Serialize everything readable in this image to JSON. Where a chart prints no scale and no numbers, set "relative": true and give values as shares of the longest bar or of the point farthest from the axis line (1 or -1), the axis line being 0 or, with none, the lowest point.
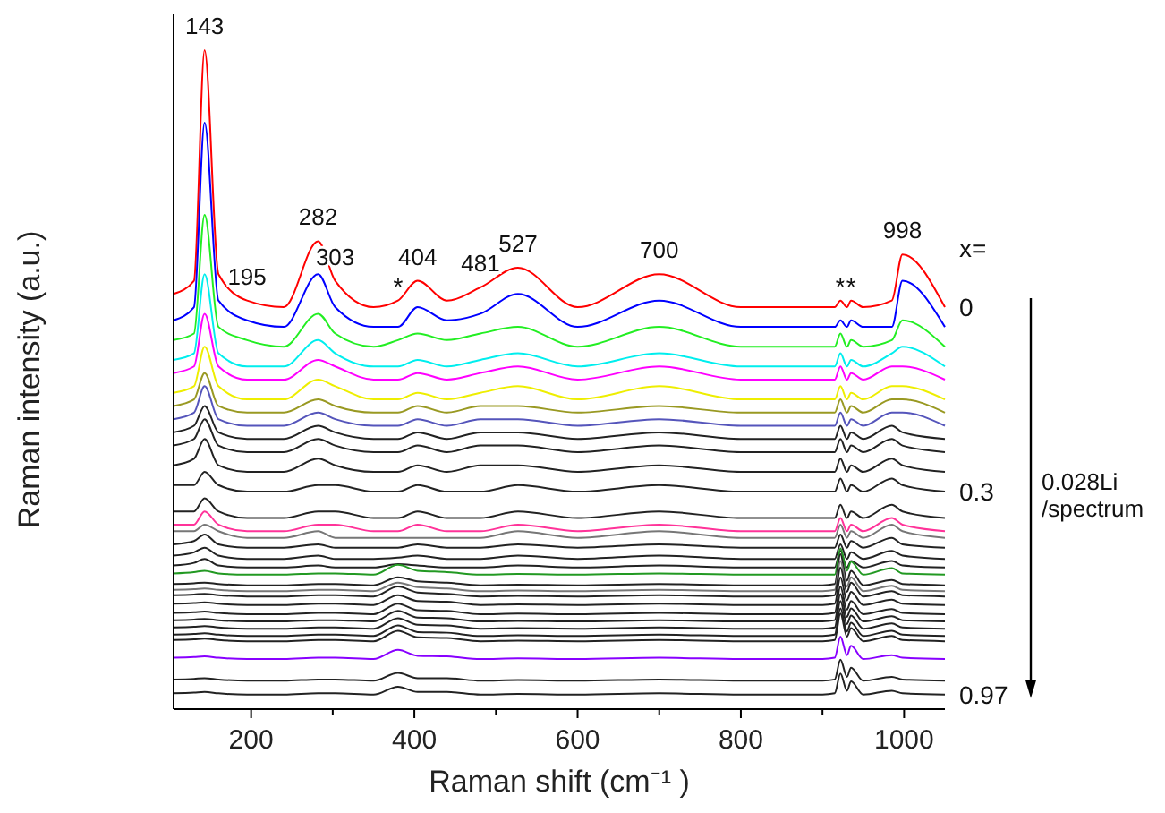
{
  "chart_data": {
    "type": "line",
    "relative": true,
    "xlabel": "Raman shift (cm⁻¹ )",
    "ylabel": "Raman intensity (a.u.)",
    "legend": false,
    "marker": "none",
    "line_style": "solid",
    "grid": false,
    "xlim": [
      105,
      1050
    ],
    "xticks": [
      200,
      {
        "value": 300,
        "label": null
      },
      400,
      {
        "value": 500,
        "label": null
      },
      600,
      {
        "value": 700,
        "label": null
      },
      800,
      {
        "value": 900,
        "label": null
      },
      1000
    ],
    "x": [
      105,
      130,
      143,
      160,
      195,
      240,
      282,
      303,
      350,
      380,
      404,
      440,
      481,
      527,
      600,
      700,
      800,
      900,
      915,
      922,
      930,
      935,
      950,
      985,
      998,
      1050
    ],
    "annotations": [
      {
        "text": "143",
        "x": 143,
        "y": 1
      },
      {
        "text": "195",
        "x": 195,
        "y": 0.62
      },
      {
        "text": "282",
        "x": 282,
        "y": 0.71
      },
      {
        "text": "303",
        "x": 303,
        "y": 0.65
      },
      {
        "text": "*",
        "x": 380,
        "y": 0.62
      },
      {
        "text": "404",
        "x": 404,
        "y": 0.65
      },
      {
        "text": "481",
        "x": 481,
        "y": 0.64
      },
      {
        "text": "527",
        "x": 527,
        "y": 0.67
      },
      {
        "text": "700",
        "x": 700,
        "y": 0.66
      },
      {
        "text": "*",
        "x": 922,
        "y": 0.62
      },
      {
        "text": "*",
        "x": 935,
        "y": 0.62
      },
      {
        "text": "998",
        "x": 998,
        "y": 0.69
      },
      "x=",
      "0.028Li /spectrum"
    ],
    "series": [
      {
        "name": "0",
        "color": "#ff0000",
        "values": [
          0.63,
          0.65,
          1,
          0.66,
          0.62,
          0.61,
          0.71,
          0.65,
          0.61,
          0.62,
          0.65,
          0.62,
          0.64,
          0.67,
          0.61,
          0.66,
          0.61,
          0.61,
          0.61,
          0.62,
          0.61,
          0.62,
          0.61,
          0.62,
          0.69,
          0.61
        ]
      },
      {
        "color": "#0000ff",
        "values": [
          0.59,
          0.61,
          0.89,
          0.62,
          0.59,
          0.58,
          0.66,
          0.61,
          0.58,
          0.58,
          0.61,
          0.59,
          0.6,
          0.63,
          0.58,
          0.62,
          0.58,
          0.58,
          0.58,
          0.59,
          0.58,
          0.59,
          0.58,
          0.58,
          0.65,
          0.58
        ]
      },
      {
        "color": "#22ee22",
        "values": [
          0.56,
          0.57,
          0.75,
          0.58,
          0.56,
          0.55,
          0.6,
          0.57,
          0.55,
          0.56,
          0.57,
          0.56,
          0.57,
          0.58,
          0.55,
          0.58,
          0.55,
          0.55,
          0.55,
          0.57,
          0.55,
          0.56,
          0.55,
          0.56,
          0.59,
          0.55
        ]
      },
      {
        "color": "#00eeee",
        "values": [
          0.53,
          0.54,
          0.66,
          0.54,
          0.52,
          0.52,
          0.56,
          0.54,
          0.52,
          0.52,
          0.53,
          0.52,
          0.53,
          0.54,
          0.52,
          0.54,
          0.52,
          0.52,
          0.52,
          0.54,
          0.52,
          0.53,
          0.52,
          0.54,
          0.55,
          0.52
        ]
      },
      {
        "color": "#ff00ff",
        "values": [
          0.51,
          0.52,
          0.6,
          0.52,
          0.5,
          0.5,
          0.53,
          0.52,
          0.5,
          0.5,
          0.51,
          0.5,
          0.51,
          0.52,
          0.5,
          0.52,
          0.5,
          0.5,
          0.5,
          0.52,
          0.5,
          0.51,
          0.5,
          0.52,
          0.52,
          0.5
        ]
      },
      {
        "color": "#eeee00",
        "values": [
          0.48,
          0.49,
          0.55,
          0.49,
          0.47,
          0.47,
          0.5,
          0.49,
          0.47,
          0.47,
          0.48,
          0.47,
          0.48,
          0.49,
          0.47,
          0.49,
          0.47,
          0.47,
          0.47,
          0.49,
          0.47,
          0.48,
          0.47,
          0.49,
          0.49,
          0.47
        ]
      },
      {
        "color": "#999922",
        "values": [
          0.46,
          0.47,
          0.51,
          0.46,
          0.45,
          0.45,
          0.47,
          0.46,
          0.45,
          0.45,
          0.46,
          0.45,
          0.46,
          0.46,
          0.45,
          0.46,
          0.45,
          0.45,
          0.45,
          0.47,
          0.45,
          0.46,
          0.45,
          0.47,
          0.47,
          0.45
        ]
      },
      {
        "color": "#5555bb",
        "values": [
          0.44,
          0.45,
          0.49,
          0.44,
          0.43,
          0.43,
          0.45,
          0.44,
          0.43,
          0.43,
          0.44,
          0.43,
          0.44,
          0.44,
          0.43,
          0.44,
          0.43,
          0.43,
          0.43,
          0.45,
          0.43,
          0.44,
          0.43,
          0.45,
          0.45,
          0.43
        ]
      },
      {
        "color": "#222222",
        "values": [
          0.42,
          0.43,
          0.46,
          0.42,
          0.41,
          0.41,
          0.43,
          0.42,
          0.41,
          0.41,
          0.42,
          0.41,
          0.42,
          0.42,
          0.41,
          0.42,
          0.41,
          0.41,
          0.41,
          0.43,
          0.41,
          0.42,
          0.41,
          0.43,
          0.42,
          0.41
        ]
      },
      {
        "color": "#222222",
        "values": [
          0.4,
          0.41,
          0.44,
          0.4,
          0.39,
          0.39,
          0.41,
          0.4,
          0.39,
          0.39,
          0.4,
          0.39,
          0.4,
          0.4,
          0.39,
          0.4,
          0.39,
          0.39,
          0.39,
          0.41,
          0.39,
          0.4,
          0.39,
          0.41,
          0.4,
          0.39
        ]
      },
      {
        "color": "#222222",
        "values": [
          0.37,
          0.38,
          0.41,
          0.37,
          0.36,
          0.36,
          0.38,
          0.37,
          0.36,
          0.36,
          0.37,
          0.36,
          0.37,
          0.37,
          0.36,
          0.37,
          0.36,
          0.36,
          0.36,
          0.38,
          0.36,
          0.37,
          0.36,
          0.38,
          0.37,
          0.36
        ]
      },
      {
        "name": "0.3",
        "color": "#222222",
        "values": [
          0.34,
          0.34,
          0.36,
          0.34,
          0.33,
          0.33,
          0.34,
          0.34,
          0.33,
          0.33,
          0.34,
          0.33,
          0.33,
          0.34,
          0.33,
          0.34,
          0.33,
          0.33,
          0.33,
          0.35,
          0.33,
          0.34,
          0.33,
          0.35,
          0.34,
          0.33
        ]
      },
      {
        "color": "#222222",
        "values": [
          0.3,
          0.3,
          0.32,
          0.3,
          0.29,
          0.29,
          0.3,
          0.3,
          0.29,
          0.29,
          0.3,
          0.29,
          0.29,
          0.3,
          0.29,
          0.3,
          0.29,
          0.29,
          0.29,
          0.31,
          0.29,
          0.3,
          0.29,
          0.31,
          0.3,
          0.29
        ]
      },
      {
        "color": "#ff3399",
        "values": [
          0.28,
          0.28,
          0.3,
          0.28,
          0.27,
          0.27,
          0.28,
          0.28,
          0.27,
          0.27,
          0.28,
          0.27,
          0.27,
          0.28,
          0.27,
          0.28,
          0.27,
          0.27,
          0.27,
          0.29,
          0.27,
          0.28,
          0.27,
          0.29,
          0.28,
          0.27
        ]
      },
      {
        "color": "#777777",
        "values": [
          0.27,
          0.27,
          0.28,
          0.27,
          0.26,
          0.26,
          0.27,
          0.26,
          0.26,
          0.26,
          0.26,
          0.26,
          0.26,
          0.27,
          0.26,
          0.27,
          0.26,
          0.26,
          0.26,
          0.28,
          0.26,
          0.27,
          0.26,
          0.28,
          0.27,
          0.26
        ]
      },
      {
        "color": "#222222",
        "values": [
          0.25,
          0.255,
          0.265,
          0.25,
          0.245,
          0.245,
          0.25,
          0.245,
          0.245,
          0.245,
          0.25,
          0.245,
          0.245,
          0.25,
          0.245,
          0.25,
          0.245,
          0.245,
          0.245,
          0.265,
          0.245,
          0.255,
          0.245,
          0.26,
          0.25,
          0.245
        ]
      },
      {
        "color": "#222222",
        "values": [
          0.233,
          0.238,
          0.245,
          0.233,
          0.228,
          0.228,
          0.233,
          0.228,
          0.228,
          0.23,
          0.233,
          0.228,
          0.228,
          0.233,
          0.228,
          0.233,
          0.228,
          0.228,
          0.228,
          0.25,
          0.228,
          0.238,
          0.228,
          0.24,
          0.233,
          0.228
        ]
      },
      {
        "color": "#222222",
        "values": [
          0.218,
          0.222,
          0.228,
          0.218,
          0.215,
          0.215,
          0.218,
          0.215,
          0.215,
          0.22,
          0.218,
          0.215,
          0.215,
          0.218,
          0.215,
          0.218,
          0.215,
          0.215,
          0.215,
          0.24,
          0.215,
          0.225,
          0.215,
          0.225,
          0.218,
          0.215
        ]
      },
      {
        "color": "#229922",
        "values": [
          0.206,
          0.208,
          0.21,
          0.206,
          0.204,
          0.204,
          0.206,
          0.206,
          0.204,
          0.219,
          0.21,
          0.208,
          0.204,
          0.205,
          0.204,
          0.206,
          0.204,
          0.204,
          0.204,
          0.244,
          0.21,
          0.224,
          0.204,
          0.214,
          0.206,
          0.204
        ]
      },
      {
        "color": "#222222",
        "values": [
          0.19,
          0.191,
          0.192,
          0.19,
          0.188,
          0.188,
          0.19,
          0.19,
          0.188,
          0.2,
          0.194,
          0.192,
          0.188,
          0.189,
          0.188,
          0.19,
          0.188,
          0.188,
          0.19,
          0.235,
          0.195,
          0.21,
          0.188,
          0.196,
          0.19,
          0.188
        ]
      },
      {
        "color": "#777777",
        "values": [
          0.181,
          0.182,
          0.183,
          0.181,
          0.179,
          0.179,
          0.181,
          0.181,
          0.179,
          0.192,
          0.185,
          0.183,
          0.179,
          0.18,
          0.179,
          0.181,
          0.179,
          0.179,
          0.181,
          0.225,
          0.186,
          0.2,
          0.179,
          0.187,
          0.181,
          0.179
        ]
      },
      {
        "color": "#222222",
        "values": [
          0.173,
          0.174,
          0.175,
          0.173,
          0.171,
          0.171,
          0.173,
          0.173,
          0.171,
          0.186,
          0.177,
          0.175,
          0.171,
          0.172,
          0.171,
          0.173,
          0.171,
          0.171,
          0.173,
          0.215,
          0.178,
          0.192,
          0.171,
          0.179,
          0.173,
          0.171
        ]
      },
      {
        "color": "#222222",
        "values": [
          0.16,
          0.161,
          0.162,
          0.16,
          0.158,
          0.158,
          0.16,
          0.16,
          0.158,
          0.173,
          0.164,
          0.163,
          0.158,
          0.159,
          0.158,
          0.16,
          0.158,
          0.158,
          0.16,
          0.2,
          0.165,
          0.178,
          0.158,
          0.166,
          0.16,
          0.158
        ]
      },
      {
        "color": "#222222",
        "values": [
          0.146,
          0.147,
          0.148,
          0.146,
          0.144,
          0.144,
          0.146,
          0.146,
          0.144,
          0.16,
          0.15,
          0.149,
          0.144,
          0.145,
          0.144,
          0.146,
          0.144,
          0.144,
          0.146,
          0.186,
          0.151,
          0.164,
          0.144,
          0.152,
          0.146,
          0.144
        ]
      },
      {
        "color": "#222222",
        "values": [
          0.135,
          0.136,
          0.137,
          0.135,
          0.133,
          0.133,
          0.135,
          0.135,
          0.133,
          0.149,
          0.139,
          0.138,
          0.133,
          0.134,
          0.133,
          0.135,
          0.133,
          0.133,
          0.135,
          0.175,
          0.14,
          0.153,
          0.133,
          0.141,
          0.135,
          0.133
        ]
      },
      {
        "color": "#222222",
        "values": [
          0.124,
          0.125,
          0.126,
          0.124,
          0.122,
          0.122,
          0.124,
          0.124,
          0.122,
          0.138,
          0.128,
          0.127,
          0.122,
          0.123,
          0.122,
          0.124,
          0.122,
          0.122,
          0.124,
          0.164,
          0.129,
          0.142,
          0.122,
          0.13,
          0.124,
          0.122
        ]
      },
      {
        "color": "#222222",
        "values": [
          0.113,
          0.114,
          0.115,
          0.113,
          0.111,
          0.111,
          0.113,
          0.113,
          0.111,
          0.127,
          0.117,
          0.116,
          0.111,
          0.112,
          0.111,
          0.113,
          0.111,
          0.111,
          0.113,
          0.153,
          0.118,
          0.131,
          0.111,
          0.119,
          0.113,
          0.111
        ]
      },
      {
        "color": "#222222",
        "values": [
          0.105,
          0.106,
          0.107,
          0.105,
          0.103,
          0.103,
          0.105,
          0.105,
          0.103,
          0.119,
          0.109,
          0.108,
          0.103,
          0.104,
          0.103,
          0.105,
          0.103,
          0.103,
          0.105,
          0.145,
          0.11,
          0.123,
          0.103,
          0.111,
          0.105,
          0.103
        ]
      },
      {
        "color": "#8800ff",
        "values": [
          0.078,
          0.079,
          0.08,
          0.078,
          0.076,
          0.076,
          0.078,
          0.078,
          0.076,
          0.09,
          0.081,
          0.08,
          0.076,
          0.077,
          0.076,
          0.078,
          0.076,
          0.076,
          0.078,
          0.11,
          0.082,
          0.096,
          0.076,
          0.082,
          0.078,
          0.076
        ]
      },
      {
        "color": "#222222",
        "values": [
          0.045,
          0.046,
          0.047,
          0.045,
          0.043,
          0.043,
          0.045,
          0.045,
          0.043,
          0.055,
          0.047,
          0.047,
          0.043,
          0.044,
          0.043,
          0.045,
          0.043,
          0.043,
          0.045,
          0.075,
          0.049,
          0.063,
          0.043,
          0.049,
          0.045,
          0.043
        ]
      },
      {
        "name": "0.97",
        "color": "#222222",
        "values": [
          0.024,
          0.025,
          0.026,
          0.024,
          0.022,
          0.022,
          0.024,
          0.024,
          0.022,
          0.034,
          0.026,
          0.026,
          0.022,
          0.023,
          0.022,
          0.024,
          0.022,
          0.022,
          0.024,
          0.054,
          0.028,
          0.042,
          0.022,
          0.028,
          0.024,
          0.022
        ]
      }
    ]
  }
}
